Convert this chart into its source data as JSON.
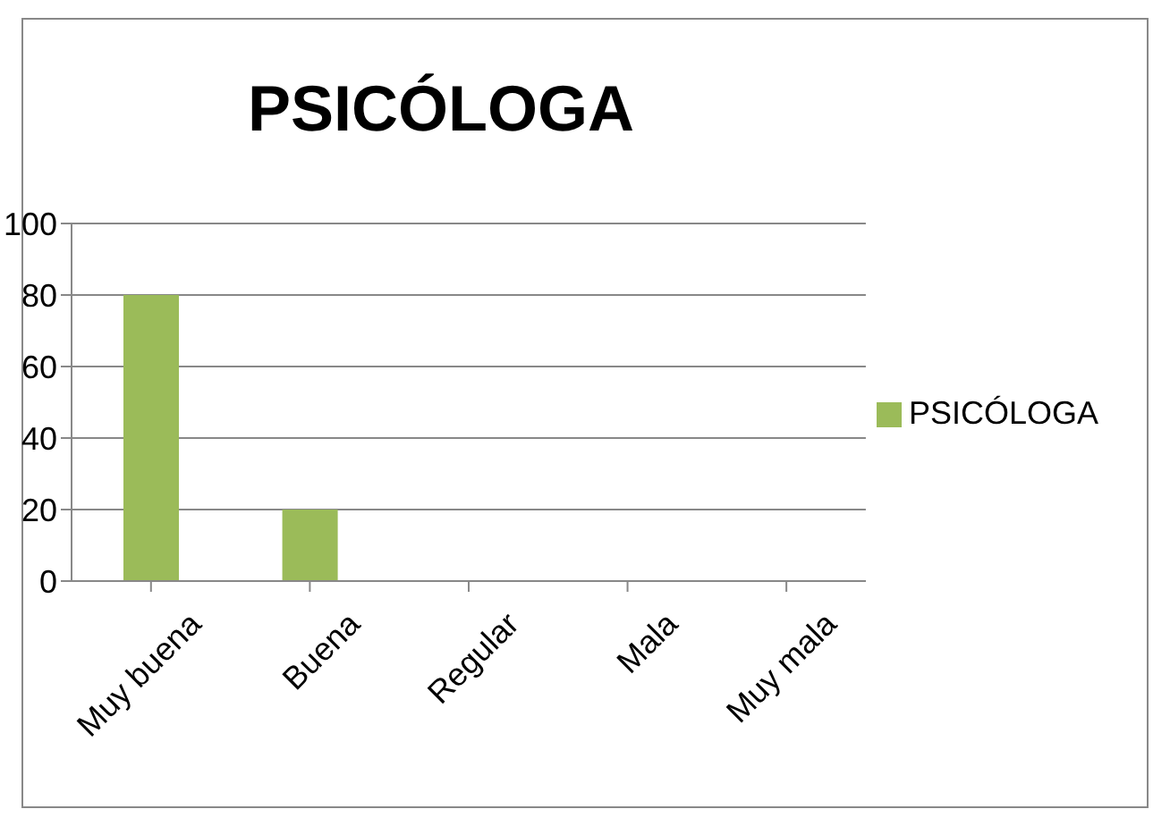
{
  "chart_data": {
    "type": "bar",
    "title": "PSICÓLOGA",
    "categories": [
      "Muy buena",
      "Buena",
      "Regular",
      "Mala",
      "Muy mala"
    ],
    "series": [
      {
        "name": "PSICÓLOGA",
        "color": "#9bbb59",
        "values": [
          80,
          20,
          0,
          0,
          0
        ]
      }
    ],
    "ylim": [
      0,
      100
    ],
    "yticks": [
      0,
      20,
      40,
      60,
      80,
      100
    ],
    "grid": "y",
    "legend": "right"
  }
}
